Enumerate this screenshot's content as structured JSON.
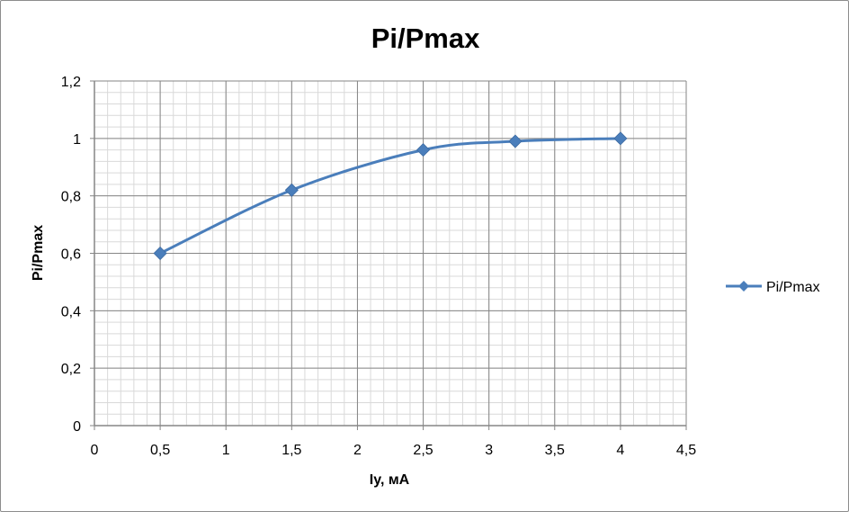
{
  "chart_data": {
    "type": "line",
    "title": "Pi/Pmax",
    "xlabel": "Iy, мА",
    "ylabel": "Pi/Pmax",
    "xlim": [
      0,
      4.5
    ],
    "ylim": [
      0,
      1.2
    ],
    "x_ticks": [
      "0",
      "0,5",
      "1",
      "1,5",
      "2",
      "2,5",
      "3",
      "3,5",
      "4",
      "4,5"
    ],
    "y_ticks": [
      "0",
      "0,2",
      "0,4",
      "0,6",
      "0,8",
      "1",
      "1,2"
    ],
    "x_tick_values": [
      0,
      0.5,
      1,
      1.5,
      2,
      2.5,
      3,
      3.5,
      4,
      4.5
    ],
    "y_tick_values": [
      0,
      0.2,
      0.4,
      0.6,
      0.8,
      1.0,
      1.2
    ],
    "grid": true,
    "minor_grid": true,
    "legend_position": "right",
    "smooth": true,
    "series": [
      {
        "name": "Pi/Pmax",
        "color": "#4a7ebb",
        "marker": "diamond",
        "x": [
          0.5,
          1.5,
          2.5,
          3.2,
          4.0
        ],
        "y": [
          0.6,
          0.82,
          0.96,
          0.99,
          1.0
        ]
      }
    ]
  }
}
